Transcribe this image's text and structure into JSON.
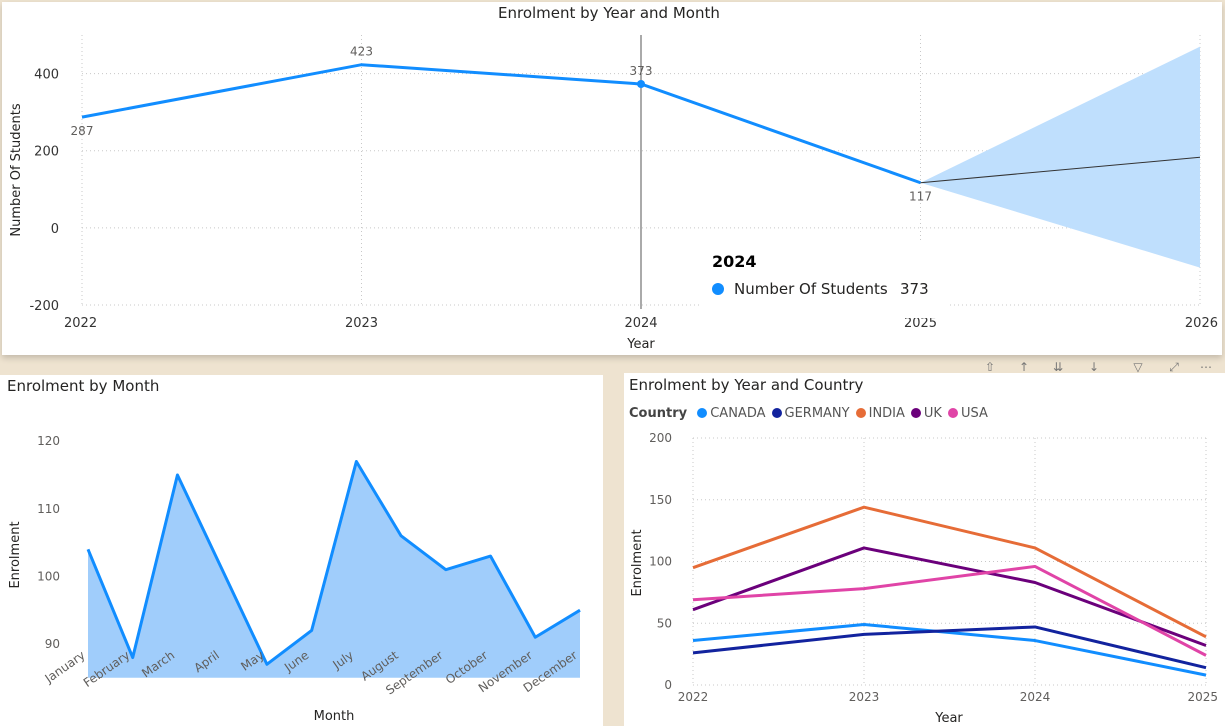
{
  "charts": {
    "top": {
      "title": "Enrolment by Year and Month",
      "xlabel": "Year",
      "ylabel": "Number Of Students",
      "xticks": [
        "2022",
        "2023",
        "2024",
        "2025",
        "2026"
      ],
      "yticks": [
        "400",
        "200",
        "0",
        "-200"
      ],
      "tooltip": {
        "header": "2024",
        "series": "Number Of Students",
        "value": "373"
      }
    },
    "month": {
      "title": "Enrolment by Month",
      "xlabel": "Month",
      "ylabel": "Enrolment",
      "yticks": [
        "120",
        "110",
        "100",
        "90"
      ]
    },
    "country": {
      "title": "Enrolment by Year and Country",
      "legend_title": "Country",
      "xlabel": "Year",
      "ylabel": "Enrolment",
      "xticks": [
        "2022",
        "2023",
        "2024",
        "2025"
      ],
      "yticks": [
        "200",
        "150",
        "100",
        "50",
        "0"
      ]
    }
  },
  "chart_data": [
    {
      "type": "line",
      "title": "Enrolment by Year and Month",
      "xlabel": "Year",
      "ylabel": "Number Of Students",
      "x": [
        2022,
        2023,
        2024,
        2025
      ],
      "series": [
        {
          "name": "Number Of Students",
          "values": [
            287,
            423,
            373,
            117
          ],
          "color": "#118dff"
        }
      ],
      "forecast": {
        "x": [
          2025,
          2026
        ],
        "values": [
          117,
          183
        ],
        "upper": [
          117,
          470
        ],
        "lower": [
          117,
          -103
        ]
      },
      "xlim": [
        2022,
        2026
      ],
      "ylim": [
        -200,
        500
      ],
      "highlighted_x": 2024,
      "grid": true
    },
    {
      "type": "area",
      "title": "Enrolment by Month",
      "xlabel": "Month",
      "ylabel": "Enrolment",
      "categories": [
        "January",
        "February",
        "March",
        "April",
        "May",
        "June",
        "July",
        "August",
        "September",
        "October",
        "November",
        "December"
      ],
      "values": [
        104,
        88,
        115,
        101,
        87,
        92,
        117,
        106,
        101,
        103,
        91,
        95
      ],
      "ylim": [
        85,
        121
      ],
      "color": "#118dff",
      "fill": "#a0cdfb",
      "grid": false
    },
    {
      "type": "line",
      "title": "Enrolment by Year and Country",
      "xlabel": "Year",
      "ylabel": "Enrolment",
      "x": [
        2022,
        2023,
        2024,
        2025
      ],
      "series": [
        {
          "name": "CANADA",
          "values": [
            36,
            49,
            36,
            8
          ],
          "color": "#118dff"
        },
        {
          "name": "GERMANY",
          "values": [
            26,
            41,
            47,
            14
          ],
          "color": "#12239e"
        },
        {
          "name": "INDIA",
          "values": [
            95,
            144,
            111,
            39
          ],
          "color": "#e66c37"
        },
        {
          "name": "UK",
          "values": [
            61,
            111,
            83,
            32
          ],
          "color": "#6b007b"
        },
        {
          "name": "USA",
          "values": [
            69,
            78,
            96,
            24
          ],
          "color": "#e044a7"
        }
      ],
      "ylim": [
        0,
        200
      ],
      "legend_position": "top-left",
      "grid": true
    }
  ],
  "icons": [
    "pin-icon",
    "drill-up-icon",
    "expand-all-icon",
    "drill-down-icon",
    "filter-icon",
    "focus-mode-icon",
    "more-options-icon"
  ]
}
